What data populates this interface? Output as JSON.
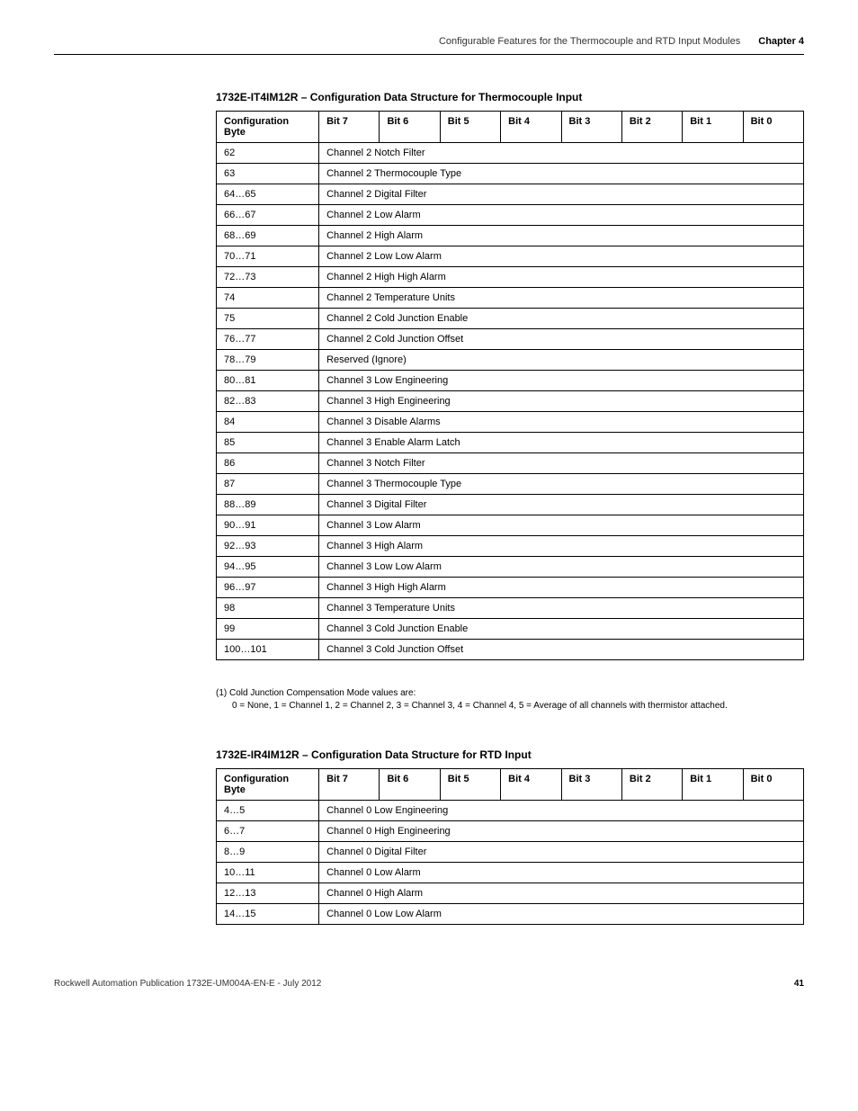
{
  "header": {
    "title": "Configurable Features for the Thermocouple and RTD Input Modules",
    "chapter": "Chapter 4"
  },
  "table1": {
    "title": "1732E-IT4IM12R – Configuration Data Structure for Thermocouple Input",
    "headers": {
      "config": "Configuration Byte",
      "bit7": "Bit 7",
      "bit6": "Bit 6",
      "bit5": "Bit 5",
      "bit4": "Bit 4",
      "bit3": "Bit 3",
      "bit2": "Bit 2",
      "bit1": "Bit 1",
      "bit0": "Bit 0"
    },
    "rows": [
      {
        "byte": "62",
        "desc": "Channel 2 Notch Filter"
      },
      {
        "byte": "63",
        "desc": "Channel 2 Thermocouple Type"
      },
      {
        "byte": "64…65",
        "desc": "Channel 2 Digital Filter"
      },
      {
        "byte": "66…67",
        "desc": "Channel 2 Low Alarm"
      },
      {
        "byte": "68…69",
        "desc": "Channel 2 High Alarm"
      },
      {
        "byte": "70…71",
        "desc": "Channel 2 Low Low Alarm"
      },
      {
        "byte": "72…73",
        "desc": "Channel 2 High High Alarm"
      },
      {
        "byte": "74",
        "desc": "Channel 2 Temperature Units"
      },
      {
        "byte": "75",
        "desc": "Channel 2 Cold Junction Enable"
      },
      {
        "byte": "76…77",
        "desc": "Channel 2 Cold Junction Offset"
      },
      {
        "byte": "78…79",
        "desc": "Reserved (Ignore)"
      },
      {
        "byte": "80…81",
        "desc": "Channel 3 Low Engineering"
      },
      {
        "byte": "82…83",
        "desc": "Channel 3 High Engineering"
      },
      {
        "byte": "84",
        "desc": "Channel 3 Disable Alarms"
      },
      {
        "byte": "85",
        "desc": "Channel 3 Enable Alarm Latch"
      },
      {
        "byte": "86",
        "desc": "Channel 3 Notch Filter"
      },
      {
        "byte": "87",
        "desc": "Channel 3 Thermocouple Type"
      },
      {
        "byte": "88…89",
        "desc": "Channel 3 Digital Filter"
      },
      {
        "byte": "90…91",
        "desc": "Channel 3 Low Alarm"
      },
      {
        "byte": "92…93",
        "desc": "Channel 3 High Alarm"
      },
      {
        "byte": "94…95",
        "desc": "Channel 3 Low Low Alarm"
      },
      {
        "byte": "96…97",
        "desc": "Channel 3 High High Alarm"
      },
      {
        "byte": "98",
        "desc": "Channel 3 Temperature Units"
      },
      {
        "byte": "99",
        "desc": "Channel 3 Cold Junction Enable"
      },
      {
        "byte": "100…101",
        "desc": "Channel 3 Cold Junction Offset"
      }
    ]
  },
  "footnote": {
    "marker": "(1)",
    "line1": "Cold Junction Compensation Mode values are:",
    "line2": "0 = None, 1 = Channel 1, 2 = Channel 2, 3 = Channel 3, 4 = Channel 4, 5 = Average of all channels with thermistor attached."
  },
  "table2": {
    "title": "1732E-IR4IM12R – Configuration Data Structure for RTD Input",
    "headers": {
      "config": "Configuration Byte",
      "bit7": "Bit 7",
      "bit6": "Bit 6",
      "bit5": "Bit 5",
      "bit4": "Bit 4",
      "bit3": "Bit 3",
      "bit2": "Bit 2",
      "bit1": "Bit 1",
      "bit0": "Bit 0"
    },
    "rows": [
      {
        "byte": "4…5",
        "desc": "Channel 0 Low Engineering"
      },
      {
        "byte": "6…7",
        "desc": "Channel 0 High Engineering"
      },
      {
        "byte": "8…9",
        "desc": "Channel 0 Digital Filter"
      },
      {
        "byte": "10…11",
        "desc": "Channel 0 Low Alarm"
      },
      {
        "byte": "12…13",
        "desc": "Channel 0 High Alarm"
      },
      {
        "byte": "14…15",
        "desc": "Channel 0 Low Low Alarm"
      }
    ]
  },
  "footer": {
    "publication": "Rockwell Automation Publication 1732E-UM004A-EN-E - July 2012",
    "page": "41"
  }
}
